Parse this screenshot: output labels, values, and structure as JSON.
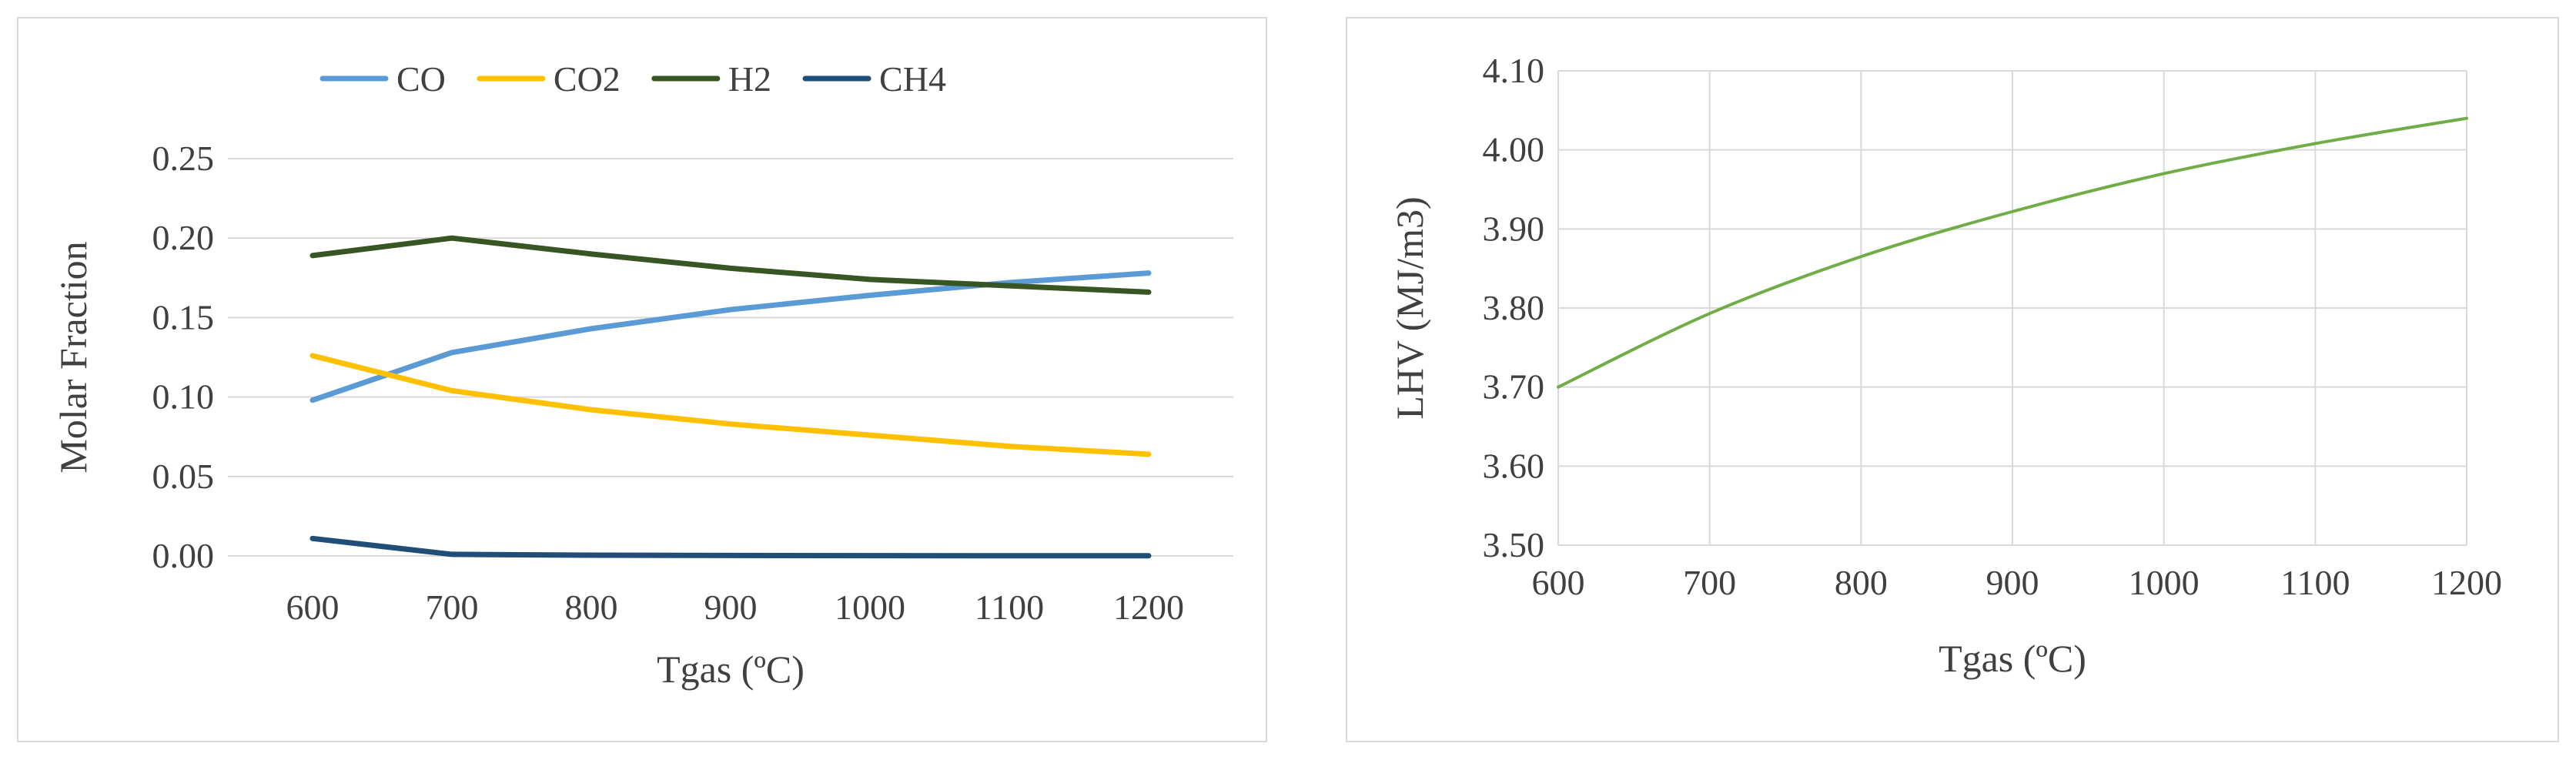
{
  "chart_data": [
    {
      "type": "line",
      "title": "",
      "xlabel": "Tgas (ºC)",
      "ylabel": "Molar Fraction",
      "x": [
        600,
        700,
        800,
        900,
        1000,
        1100,
        1200
      ],
      "x_tick_labels": [
        "600",
        "700",
        "800",
        "900",
        "1000",
        "1100",
        "1200"
      ],
      "ylim": [
        0,
        0.25
      ],
      "y_ticks": [
        0,
        0.05,
        0.1,
        0.15,
        0.2,
        0.25
      ],
      "y_tick_labels": [
        "0.00",
        "0.05",
        "0.10",
        "0.15",
        "0.20",
        "0.25"
      ],
      "grid": "horizontal",
      "legend_position": "top",
      "series": [
        {
          "name": "CO",
          "color": "#5b9bd5",
          "values": [
            0.098,
            0.128,
            0.143,
            0.155,
            0.164,
            0.172,
            0.178
          ]
        },
        {
          "name": "CO2",
          "color": "#ffc000",
          "values": [
            0.126,
            0.104,
            0.092,
            0.083,
            0.076,
            0.069,
            0.064
          ]
        },
        {
          "name": "H2",
          "color": "#375623",
          "values": [
            0.189,
            0.2,
            0.19,
            0.181,
            0.174,
            0.17,
            0.166
          ]
        },
        {
          "name": "CH4",
          "color": "#1f4e79",
          "values": [
            0.011,
            0.001,
            0.0005,
            0.0003,
            0.0002,
            0.0001,
            0.0001
          ]
        }
      ]
    },
    {
      "type": "line",
      "title": "",
      "xlabel": "Tgas (ºC)",
      "ylabel": "LHV (MJ/m3)",
      "x": [
        600,
        700,
        800,
        900,
        1000,
        1100,
        1200
      ],
      "x_tick_labels": [
        "600",
        "700",
        "800",
        "900",
        "1000",
        "1100",
        "1200"
      ],
      "ylim": [
        3.5,
        4.1
      ],
      "y_ticks": [
        3.5,
        3.6,
        3.7,
        3.8,
        3.9,
        4.0,
        4.1
      ],
      "y_tick_labels": [
        "3.50",
        "3.60",
        "3.70",
        "3.80",
        "3.90",
        "4.00",
        "4.10"
      ],
      "grid": "both",
      "series": [
        {
          "color": "#70ad47",
          "values": [
            3.7,
            3.793,
            3.865,
            3.922,
            3.97,
            4.008,
            4.04
          ]
        }
      ]
    }
  ]
}
